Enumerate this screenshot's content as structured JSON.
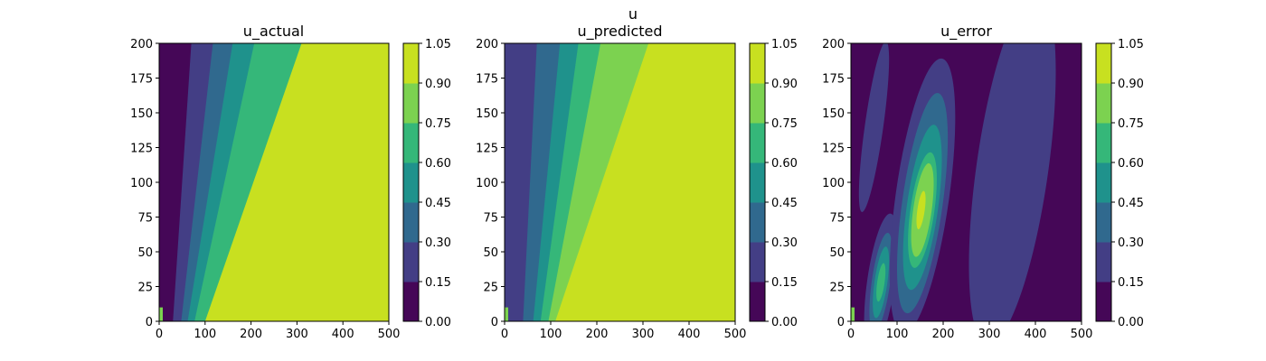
{
  "figure": {
    "suptitle": "u"
  },
  "colors": {
    "levels": [
      "#450757",
      "#433e85",
      "#30698e",
      "#1f928c",
      "#35b779",
      "#7cd250",
      "#c8e020"
    ]
  },
  "chart_data": [
    {
      "type": "contour",
      "title": "u_actual",
      "xlim": [
        0,
        500
      ],
      "ylim": [
        0,
        200
      ],
      "xticks": [
        "0",
        "100",
        "200",
        "300",
        "400",
        "500"
      ],
      "yticks": [
        "0",
        "25",
        "50",
        "75",
        "100",
        "125",
        "150",
        "175",
        "200"
      ],
      "colorbar": {
        "levels": [
          "0.00",
          "0.15",
          "0.30",
          "0.45",
          "0.60",
          "0.75",
          "0.90",
          "1.05"
        ]
      },
      "bands": [
        {
          "level": "0.00-0.15",
          "boundary_x_at_y0": 30,
          "boundary_x_at_y200": 70
        },
        {
          "level": "0.15-0.30",
          "boundary_x_at_y0": 48,
          "boundary_x_at_y200": 117
        },
        {
          "level": "0.30-0.45",
          "boundary_x_at_y0": 62,
          "boundary_x_at_y200": 160
        },
        {
          "level": "0.45-0.60",
          "boundary_x_at_y0": 77,
          "boundary_x_at_y200": 207
        },
        {
          "level": "0.60-0.75",
          "boundary_x_at_y0": 100,
          "boundary_x_at_y200": 310
        },
        {
          "level": "0.90-1.05",
          "region": "remainder"
        }
      ]
    },
    {
      "type": "contour",
      "title": "u_predicted",
      "xlim": [
        0,
        500
      ],
      "ylim": [
        0,
        200
      ],
      "xticks": [
        "0",
        "100",
        "200",
        "300",
        "400",
        "500"
      ],
      "yticks": [
        "0",
        "25",
        "50",
        "75",
        "100",
        "125",
        "150",
        "175",
        "200"
      ],
      "colorbar": {
        "levels": [
          "0.00",
          "0.15",
          "0.30",
          "0.45",
          "0.60",
          "0.75",
          "0.90",
          "1.05"
        ]
      },
      "bands": [
        {
          "level": "0.15-0.30",
          "boundary_x_at_y0": 40,
          "boundary_x_at_y200": 70
        },
        {
          "level": "0.30-0.45",
          "boundary_x_at_y0": 62,
          "boundary_x_at_y200": 120
        },
        {
          "level": "0.45-0.60",
          "boundary_x_at_y0": 78,
          "boundary_x_at_y200": 160
        },
        {
          "level": "0.60-0.75",
          "boundary_x_at_y0": 95,
          "boundary_x_at_y200": 208
        },
        {
          "level": "0.75-0.90",
          "boundary_x_at_y0": 110,
          "boundary_x_at_y200": 312
        },
        {
          "level": "0.90-1.05",
          "region": "remainder"
        }
      ]
    },
    {
      "type": "contour",
      "title": "u_error",
      "xlim": [
        0,
        500
      ],
      "ylim": [
        0,
        200
      ],
      "xticks": [
        "0",
        "100",
        "200",
        "300",
        "400",
        "500"
      ],
      "yticks": [
        "0",
        "25",
        "50",
        "75",
        "100",
        "125",
        "150",
        "175",
        "200"
      ],
      "colorbar": {
        "levels": [
          "0.00",
          "0.15",
          "0.30",
          "0.45",
          "0.60",
          "0.75",
          "0.90",
          "1.05"
        ]
      },
      "background_level": "0.00-0.15",
      "blobs": [
        {
          "center": [
            50,
            140
          ],
          "extent": [
            20,
            62
          ],
          "level": "0.15-0.30"
        },
        {
          "center": [
            350,
            110
          ],
          "extent": [
            78,
            128
          ],
          "level": "0.15-0.30"
        },
        {
          "center": [
            65,
            28
          ],
          "extent": [
            30,
            50
          ],
          "level": "0.15-0.30"
        },
        {
          "center": [
            65,
            28
          ],
          "extent": [
            20,
            36
          ],
          "level": "0.30-0.45"
        },
        {
          "center": [
            65,
            28
          ],
          "extent": [
            14,
            26
          ],
          "level": "0.45-0.60"
        },
        {
          "center": [
            65,
            28
          ],
          "extent": [
            8,
            14
          ],
          "level": "0.60-0.75"
        },
        {
          "center": [
            155,
            90
          ],
          "extent": [
            58,
            100
          ],
          "level": "0.15-0.30"
        },
        {
          "center": [
            155,
            85
          ],
          "extent": [
            44,
            80
          ],
          "level": "0.30-0.45"
        },
        {
          "center": [
            155,
            82
          ],
          "extent": [
            34,
            60
          ],
          "level": "0.45-0.60"
        },
        {
          "center": [
            155,
            80
          ],
          "extent": [
            26,
            42
          ],
          "level": "0.60-0.75"
        },
        {
          "center": [
            155,
            80
          ],
          "extent": [
            20,
            34
          ],
          "level": "0.75-0.90"
        },
        {
          "center": [
            152,
            80
          ],
          "extent": [
            8,
            14
          ],
          "level": "0.90-1.05"
        }
      ]
    }
  ]
}
